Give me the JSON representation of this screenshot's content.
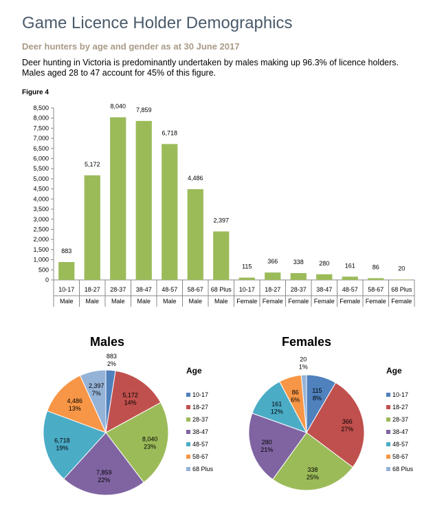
{
  "header": {
    "title": "Game Licence Holder Demographics",
    "subtitle": "Deer hunters by age and gender as at 30 June 2017",
    "paragraph": "Deer hunting in Victoria is predominantly undertaken by males making up 96.3% of licence holders. Males aged 28 to 47 account for 45% of this figure.",
    "figure_label": "Figure 4"
  },
  "chart_data": [
    {
      "type": "bar",
      "categories": [
        {
          "age": "10-17",
          "gender": "Male"
        },
        {
          "age": "18-27",
          "gender": "Male"
        },
        {
          "age": "28-37",
          "gender": "Male"
        },
        {
          "age": "38-47",
          "gender": "Male"
        },
        {
          "age": "48-57",
          "gender": "Male"
        },
        {
          "age": "58-67",
          "gender": "Male"
        },
        {
          "age": "68 Plus",
          "gender": "Male"
        },
        {
          "age": "10-17",
          "gender": "Female"
        },
        {
          "age": "18-27",
          "gender": "Female"
        },
        {
          "age": "28-37",
          "gender": "Female"
        },
        {
          "age": "38-47",
          "gender": "Female"
        },
        {
          "age": "48-57",
          "gender": "Female"
        },
        {
          "age": "58-67",
          "gender": "Female"
        },
        {
          "age": "68 Plus",
          "gender": "Female"
        }
      ],
      "values": [
        883,
        5172,
        8040,
        7859,
        6718,
        4486,
        2397,
        115,
        366,
        338,
        280,
        161,
        86,
        20
      ],
      "value_labels": [
        "883",
        "5,172",
        "8,040",
        "7,859",
        "6,718",
        "4,486",
        "2,397",
        "115",
        "366",
        "338",
        "280",
        "161",
        "86",
        "20"
      ],
      "ylim": [
        0,
        8500
      ],
      "yticks": [
        "0",
        "500",
        "1,000",
        "1,500",
        "2,000",
        "2,500",
        "3,000",
        "3,500",
        "4,000",
        "4,500",
        "5,000",
        "5,500",
        "6,000",
        "6,500",
        "7,000",
        "7,500",
        "8,000",
        "8,500"
      ],
      "bar_color": "#9bbb59"
    },
    {
      "type": "pie",
      "title": "Males",
      "legend_title": "Age",
      "slices": [
        {
          "label": "10-17",
          "value": 883,
          "value_label": "883",
          "pct": "2%",
          "color": "#4f81bd"
        },
        {
          "label": "18-27",
          "value": 5172,
          "value_label": "5,172",
          "pct": "14%",
          "color": "#c0504d"
        },
        {
          "label": "28-37",
          "value": 8040,
          "value_label": "8,040",
          "pct": "23%",
          "color": "#9bbb59"
        },
        {
          "label": "38-47",
          "value": 7859,
          "value_label": "7,859",
          "pct": "22%",
          "color": "#8064a2"
        },
        {
          "label": "48-57",
          "value": 6718,
          "value_label": "6,718",
          "pct": "19%",
          "color": "#4bacc6"
        },
        {
          "label": "58-67",
          "value": 4486,
          "value_label": "4,486",
          "pct": "13%",
          "color": "#f79646"
        },
        {
          "label": "68 Plus",
          "value": 2397,
          "value_label": "2,397",
          "pct": "7%",
          "color": "#95b3d7"
        }
      ]
    },
    {
      "type": "pie",
      "title": "Females",
      "legend_title": "Age",
      "slices": [
        {
          "label": "10-17",
          "value": 115,
          "value_label": "115",
          "pct": "8%",
          "color": "#4f81bd"
        },
        {
          "label": "18-27",
          "value": 366,
          "value_label": "366",
          "pct": "27%",
          "color": "#c0504d"
        },
        {
          "label": "28-37",
          "value": 338,
          "value_label": "338",
          "pct": "25%",
          "color": "#9bbb59"
        },
        {
          "label": "38-47",
          "value": 280,
          "value_label": "280",
          "pct": "21%",
          "color": "#8064a2"
        },
        {
          "label": "48-57",
          "value": 161,
          "value_label": "161",
          "pct": "12%",
          "color": "#4bacc6"
        },
        {
          "label": "58-67",
          "value": 86,
          "value_label": "86",
          "pct": "6%",
          "color": "#f79646"
        },
        {
          "label": "68 Plus",
          "value": 20,
          "value_label": "20",
          "pct": "1%",
          "color": "#95b3d7"
        }
      ]
    }
  ]
}
